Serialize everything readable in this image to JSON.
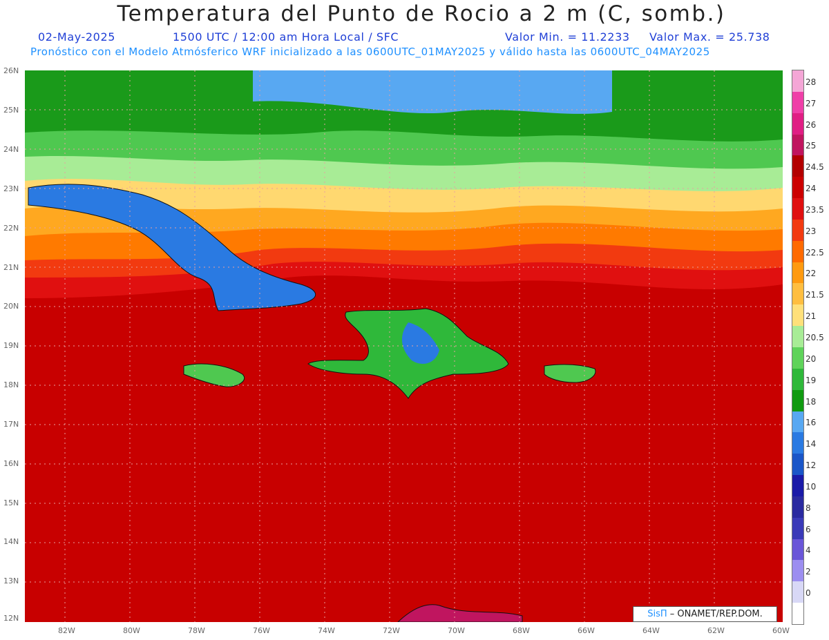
{
  "header": {
    "title": "Temperatura del Punto de Rocio a 2 m (C, somb.)",
    "date": "02-May-2025",
    "time": "1500 UTC / 12:00 am Hora Local / SFC",
    "min_label": "Valor Min. = 11.2233",
    "max_label": "Valor Max. = 25.738",
    "model_info": "Pronóstico con el Modelo Atmósferico WRF inicializado a las 0600UTC_01MAY2025 y válido hasta las  0600UTC_04MAY2025"
  },
  "map": {
    "lat_labels": [
      "26N",
      "25N",
      "24N",
      "23N",
      "22N",
      "21N",
      "20N",
      "19N",
      "18N",
      "17N",
      "16N",
      "15N",
      "14N",
      "13N",
      "12N"
    ],
    "lon_labels": [
      "82W",
      "80W",
      "78W",
      "76W",
      "74W",
      "72W",
      "70W",
      "68W",
      "66W",
      "64W",
      "62W",
      "60W"
    ],
    "lat_range": [
      12,
      26
    ],
    "lon_range": [
      -83.2,
      -60
    ],
    "grid": true
  },
  "colorbar": {
    "labels": [
      "28",
      "27",
      "26",
      "25",
      "24.5",
      "24",
      "23.5",
      "23",
      "22.5",
      "22",
      "21.5",
      "21",
      "20.5",
      "20",
      "19",
      "18",
      "16",
      "14",
      "12",
      "10",
      "8",
      "6",
      "4",
      "2",
      "0"
    ],
    "colors": [
      "#f4a6d6",
      "#ef3fa8",
      "#e01e84",
      "#c0155f",
      "#b30000",
      "#cc0000",
      "#e01010",
      "#f23a10",
      "#ff6a00",
      "#ff9a10",
      "#ffbe40",
      "#ffe07a",
      "#a8ec96",
      "#5fd35a",
      "#2fb83a",
      "#109a10",
      "#58a8f2",
      "#2a7ae2",
      "#1a56c8",
      "#1a1aa8",
      "#2a2aa0",
      "#3a3ab8",
      "#6a56d8",
      "#9c8ef0",
      "#d8d8f6",
      "#ffffff"
    ]
  },
  "credit": {
    "sis": "SisΠ",
    "rest": "– ONAMET/REP.DOM."
  }
}
